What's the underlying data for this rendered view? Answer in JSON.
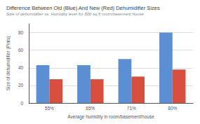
{
  "chart_data": {
    "type": "bar",
    "title": "Difference Between Old (Blue) And New (Red) Dehumidifier Sizes",
    "subtitle": "Size of dehumidifier vs. Humidity level for 500 sq ft room/basement house",
    "xlabel": "Average humidity in room/basement/house",
    "ylabel": "Size of dehumidifier (Pints)",
    "categories": [
      "55%",
      "65%",
      "71%",
      "80%"
    ],
    "series": [
      {
        "color": "#5B8FD4",
        "values": [
          43,
          43,
          50,
          80
        ]
      },
      {
        "color": "#D94F3D",
        "values": [
          27,
          27,
          30,
          38
        ]
      }
    ],
    "ylim": [
      0,
      90
    ],
    "yticks": [
      0,
      20,
      40,
      60,
      80
    ],
    "grid": true
  }
}
